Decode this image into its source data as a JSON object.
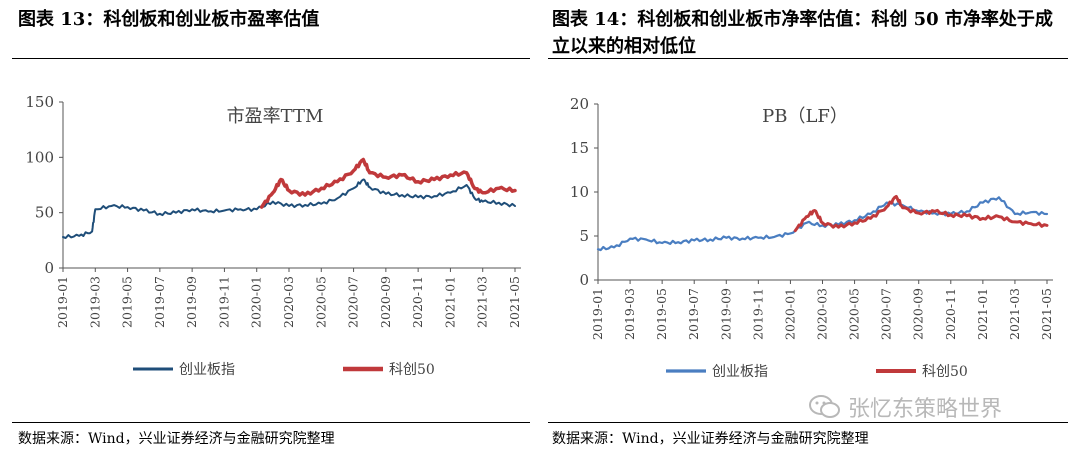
{
  "left": {
    "title": "图表 13：科创板和创业板市盈率估值",
    "source": "数据来源：Wind，兴业证券经济与金融研究院整理"
  },
  "right": {
    "title": "图表 14：科创板和创业板市净率估值：科创 50 市净率处于成立以来的相对低位",
    "source": "数据来源：Wind，兴业证券经济与金融研究院整理"
  },
  "watermark": {
    "text": "张忆东策略世界"
  },
  "chart_data": [
    {
      "type": "line",
      "title": "市盈率TTM",
      "xlabel": "",
      "ylabel": "",
      "ylim": [
        0,
        150
      ],
      "yticks": [
        0,
        50,
        100,
        150
      ],
      "x_range": [
        "2019-01",
        "2021-05"
      ],
      "xticks": [
        "2019-01",
        "2019-03",
        "2019-05",
        "2019-07",
        "2019-09",
        "2019-11",
        "2020-01",
        "2020-03",
        "2020-05",
        "2020-07",
        "2020-09",
        "2020-11",
        "2021-01",
        "2021-03",
        "2021-05"
      ],
      "legend_position": "bottom",
      "series": [
        {
          "name": "创业板指",
          "color": "#1f4e79",
          "width": 2,
          "x": [
            "2019-01",
            "2019-02",
            "2019-02.8",
            "2019-03",
            "2019-04",
            "2019-05",
            "2019-06",
            "2019-07",
            "2019-08",
            "2019-09",
            "2019-10",
            "2019-11",
            "2019-12",
            "2020-01",
            "2020-02",
            "2020-03",
            "2020-04",
            "2020-05",
            "2020-06",
            "2020-07",
            "2020-07.6",
            "2020-08",
            "2020-09",
            "2020-10",
            "2020-11",
            "2020-12",
            "2021-01",
            "2021-02",
            "2021-02.5",
            "2021-03",
            "2021-04",
            "2021-05"
          ],
          "values": [
            28,
            29,
            33,
            53,
            56,
            55,
            52,
            49,
            50,
            53,
            51,
            52,
            53,
            53,
            60,
            56,
            57,
            58,
            63,
            72,
            80,
            73,
            67,
            66,
            64,
            65,
            68,
            75,
            63,
            60,
            59,
            56
          ]
        },
        {
          "name": "科创50",
          "color": "#c0393b",
          "width": 3.5,
          "x": [
            "2020-01.3",
            "2020-02",
            "2020-02.5",
            "2020-03",
            "2020-04",
            "2020-05",
            "2020-06",
            "2020-07",
            "2020-07.6",
            "2020-08",
            "2020-09",
            "2020-10",
            "2020-11",
            "2020-12",
            "2021-01",
            "2021-02",
            "2021-02.5",
            "2021-03",
            "2021-04",
            "2021-05"
          ],
          "values": [
            55,
            68,
            80,
            70,
            66,
            72,
            78,
            88,
            98,
            86,
            82,
            84,
            78,
            80,
            84,
            86,
            72,
            68,
            72,
            70
          ]
        }
      ]
    },
    {
      "type": "line",
      "title": "PB（LF）",
      "xlabel": "",
      "ylabel": "",
      "ylim": [
        0,
        20
      ],
      "yticks": [
        0,
        5,
        10,
        15,
        20
      ],
      "x_range": [
        "2019-01",
        "2021-05"
      ],
      "xticks": [
        "2019-01",
        "2019-03",
        "2019-05",
        "2019-07",
        "2019-09",
        "2019-11",
        "2020-01",
        "2020-03",
        "2020-05",
        "2020-07",
        "2020-09",
        "2020-11",
        "2021-01",
        "2021-03",
        "2021-05"
      ],
      "legend_position": "bottom",
      "series": [
        {
          "name": "创业板指",
          "color": "#4a7ec1",
          "width": 2.2,
          "x": [
            "2019-01",
            "2019-02",
            "2019-03",
            "2019-04",
            "2019-05",
            "2019-06",
            "2019-07",
            "2019-08",
            "2019-09",
            "2019-10",
            "2019-11",
            "2019-12",
            "2020-01",
            "2020-02",
            "2020-03",
            "2020-04",
            "2020-05",
            "2020-06",
            "2020-07",
            "2020-08",
            "2020-09",
            "2020-10",
            "2020-11",
            "2020-12",
            "2021-01",
            "2021-02",
            "2021-03",
            "2021-04",
            "2021-05"
          ],
          "values": [
            3.5,
            3.7,
            4.7,
            4.6,
            4.2,
            4.3,
            4.5,
            4.6,
            4.8,
            4.7,
            4.8,
            4.9,
            5.3,
            6.5,
            6.2,
            6.3,
            6.8,
            7.5,
            8.8,
            8.5,
            7.8,
            7.6,
            7.5,
            7.8,
            8.8,
            9.4,
            7.5,
            7.7,
            7.5
          ]
        },
        {
          "name": "科创50",
          "color": "#c0393b",
          "width": 3,
          "x": [
            "2020-01.3",
            "2020-02",
            "2020-02.5",
            "2020-03",
            "2020-04",
            "2020-05",
            "2020-06",
            "2020-07",
            "2020-07.6",
            "2020-08",
            "2020-09",
            "2020-10",
            "2020-11",
            "2020-12",
            "2021-01",
            "2021-02",
            "2021-03",
            "2021-04",
            "2021-05"
          ],
          "values": [
            5.6,
            7.2,
            7.9,
            6.5,
            6.0,
            6.5,
            7.0,
            8.3,
            9.5,
            8.2,
            7.6,
            7.8,
            7.4,
            7.3,
            7.0,
            7.2,
            6.6,
            6.4,
            6.2
          ]
        }
      ]
    }
  ]
}
